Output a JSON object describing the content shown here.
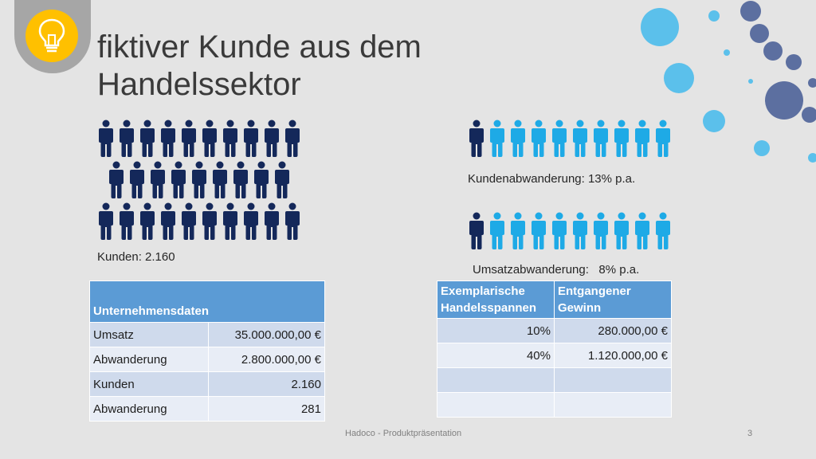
{
  "title": "fiktiver Kunde aus dem\nHandelssektor",
  "icon": "lightbulb-icon",
  "colors": {
    "dark_person": "#14285a",
    "light_person": "#1eaae6",
    "table_header": "#5b9bd5",
    "accent_yellow": "#ffc000"
  },
  "people": {
    "customers_total_rows": [
      10,
      9,
      10
    ],
    "churn_customers": {
      "dark": 1,
      "light": 9
    },
    "churn_revenue": {
      "dark": 1,
      "light": 9
    }
  },
  "captions": {
    "customers": "Kunden: 2.160",
    "customer_churn": "Kundenabwanderung: 13% p.a.",
    "revenue_churn": "Umsatzabwanderung:   8% p.a."
  },
  "company_table": {
    "header": "Unternehmensdaten",
    "rows": [
      {
        "label": "Umsatz",
        "value": "35.000.000,00 €"
      },
      {
        "label": "Abwanderung",
        "value": "2.800.000,00 €"
      },
      {
        "label": "Kunden",
        "value": "2.160"
      },
      {
        "label": "Abwanderung",
        "value": "281"
      }
    ]
  },
  "margin_table": {
    "headers": [
      "Exemplarische Handelsspannen",
      "Entgangener Gewinn"
    ],
    "rows": [
      {
        "margin": "10%",
        "profit": "280.000,00 €"
      },
      {
        "margin": "40%",
        "profit": "1.120.000,00 €"
      },
      {
        "margin": "",
        "profit": ""
      },
      {
        "margin": "",
        "profit": ""
      }
    ]
  },
  "footer": {
    "text": "Hadoco - Produktpräsentation",
    "page": "3"
  }
}
